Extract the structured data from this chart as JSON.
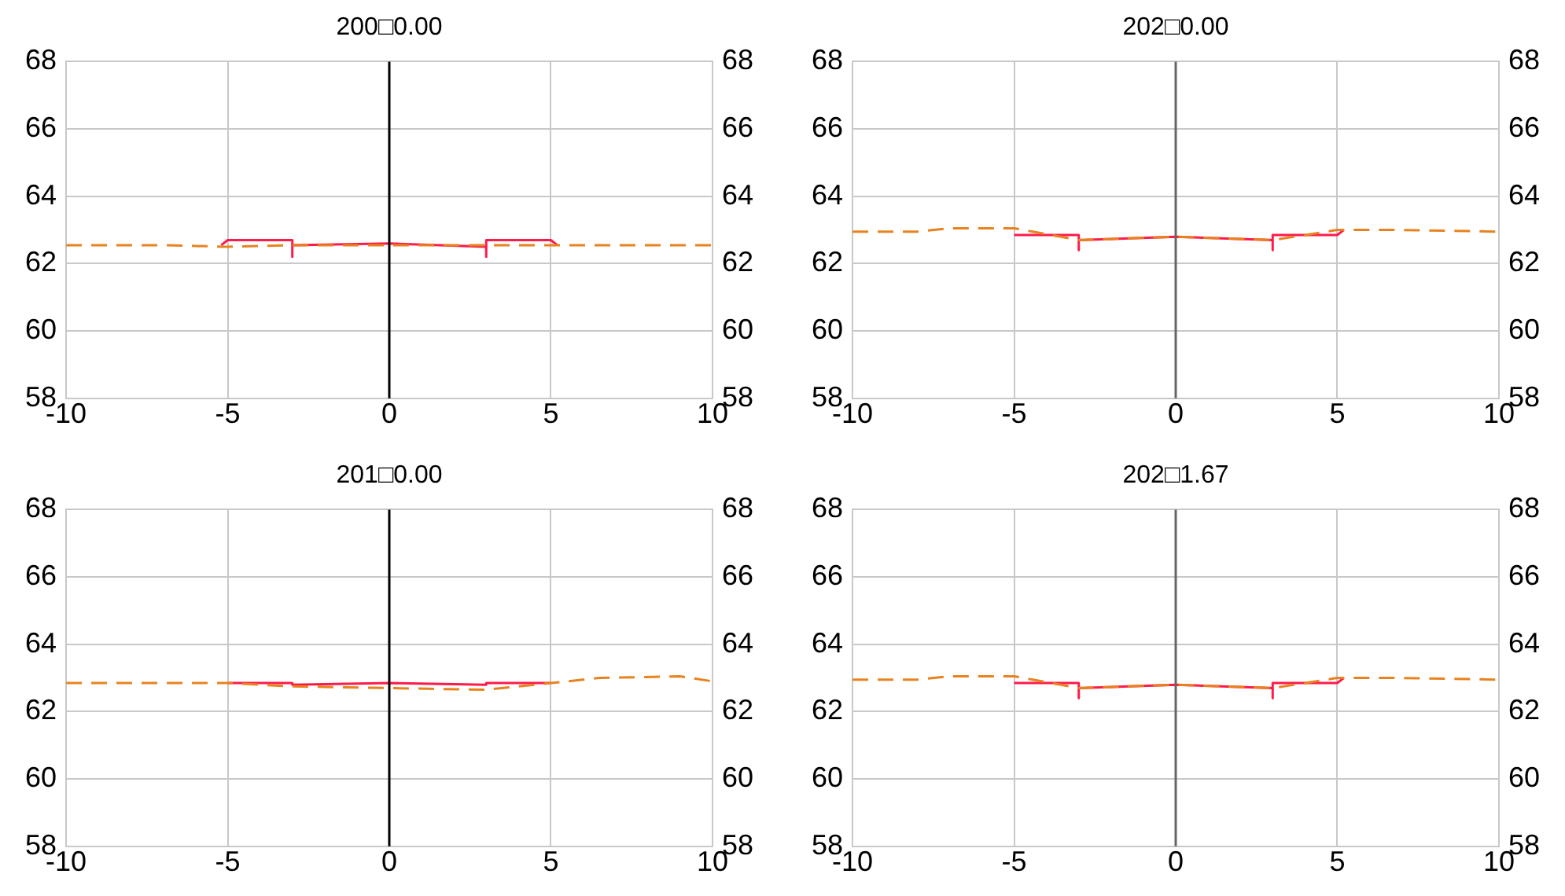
{
  "chart_data": [
    {
      "type": "line",
      "title": "200□0.00",
      "xlim": [
        -10,
        10
      ],
      "xticks": [
        -10,
        -5,
        0,
        5,
        10
      ],
      "ylim": [
        58,
        68
      ],
      "yticks": [
        58,
        60,
        62,
        64,
        66,
        68
      ],
      "y2lim": [
        58,
        68
      ],
      "y2ticks": [
        58,
        60,
        62,
        64,
        66,
        68
      ],
      "grid": true,
      "legend": false,
      "marker": "none",
      "series": [
        {
          "color": "#e8821e",
          "line_style": "dashed",
          "x": [
            -10,
            -7,
            -5,
            -3,
            0,
            3,
            5,
            7,
            10
          ],
          "values": [
            62.55,
            62.55,
            62.5,
            62.55,
            62.55,
            62.55,
            62.55,
            62.55,
            62.55
          ]
        },
        {
          "color": "#ff1a4a",
          "line_style": "solid",
          "x": [
            -5.2,
            -5,
            -3,
            -3,
            -3,
            0,
            3,
            3,
            3,
            5,
            5.2
          ],
          "values": [
            62.55,
            62.7,
            62.7,
            62.2,
            62.55,
            62.6,
            62.5,
            62.2,
            62.7,
            62.7,
            62.55
          ]
        }
      ],
      "ref_lines": [
        {
          "axis": "x",
          "value": 0,
          "color": "#000000"
        }
      ]
    },
    {
      "type": "line",
      "title": "202□0.00",
      "xlim": [
        -10,
        10
      ],
      "xticks": [
        -10,
        -5,
        0,
        5,
        10
      ],
      "ylim": [
        58,
        68
      ],
      "yticks": [
        58,
        60,
        62,
        64,
        66,
        68
      ],
      "y2lim": [
        58,
        68
      ],
      "y2ticks": [
        58,
        60,
        62,
        64,
        66,
        68
      ],
      "grid": true,
      "legend": false,
      "marker": "none",
      "series": [
        {
          "color": "#e8821e",
          "line_style": "dashed",
          "x": [
            -10,
            -8,
            -7,
            -5,
            -3,
            0,
            3,
            5,
            7,
            10
          ],
          "values": [
            62.95,
            62.95,
            63.05,
            63.05,
            62.7,
            62.8,
            62.7,
            63.0,
            63.0,
            62.95
          ]
        },
        {
          "color": "#ff1a4a",
          "line_style": "solid",
          "x": [
            -5,
            -3,
            -3,
            -3,
            0,
            3,
            3,
            3,
            5,
            5.2
          ],
          "values": [
            62.85,
            62.85,
            62.4,
            62.7,
            62.8,
            62.7,
            62.4,
            62.85,
            62.85,
            63.0
          ]
        }
      ],
      "ref_lines": [
        {
          "axis": "x",
          "value": 0,
          "color": "#666666"
        }
      ]
    },
    {
      "type": "line",
      "title": "201□0.00",
      "xlim": [
        -10,
        10
      ],
      "xticks": [
        -10,
        -5,
        0,
        5,
        10
      ],
      "ylim": [
        58,
        68
      ],
      "yticks": [
        58,
        60,
        62,
        64,
        66,
        68
      ],
      "y2lim": [
        58,
        68
      ],
      "y2ticks": [
        58,
        60,
        62,
        64,
        66,
        68
      ],
      "grid": true,
      "legend": false,
      "marker": "none",
      "series": [
        {
          "color": "#e8821e",
          "line_style": "dashed",
          "x": [
            -10,
            -5,
            -3,
            0,
            3,
            5,
            6.5,
            9,
            10
          ],
          "values": [
            62.85,
            62.85,
            62.75,
            62.7,
            62.65,
            62.85,
            63.0,
            63.05,
            62.9
          ]
        },
        {
          "color": "#ff1a4a",
          "line_style": "solid",
          "x": [
            -5,
            -3,
            -3,
            0,
            3,
            3,
            5
          ],
          "values": [
            62.85,
            62.85,
            62.8,
            62.85,
            62.8,
            62.85,
            62.85
          ]
        }
      ],
      "ref_lines": [
        {
          "axis": "x",
          "value": 0,
          "color": "#000000"
        }
      ]
    },
    {
      "type": "line",
      "title": "202□1.67",
      "xlim": [
        -10,
        10
      ],
      "xticks": [
        -10,
        -5,
        0,
        5,
        10
      ],
      "ylim": [
        58,
        68
      ],
      "yticks": [
        58,
        60,
        62,
        64,
        66,
        68
      ],
      "y2lim": [
        58,
        68
      ],
      "y2ticks": [
        58,
        60,
        62,
        64,
        66,
        68
      ],
      "grid": true,
      "legend": false,
      "marker": "none",
      "series": [
        {
          "color": "#e8821e",
          "line_style": "dashed",
          "x": [
            -10,
            -8,
            -7,
            -5,
            -3,
            0,
            3,
            5,
            7,
            10
          ],
          "values": [
            62.95,
            62.95,
            63.05,
            63.05,
            62.7,
            62.8,
            62.7,
            63.0,
            63.0,
            62.95
          ]
        },
        {
          "color": "#ff1a4a",
          "line_style": "solid",
          "x": [
            -5,
            -3,
            -3,
            -3,
            0,
            3,
            3,
            3,
            5,
            5.2
          ],
          "values": [
            62.85,
            62.85,
            62.4,
            62.7,
            62.8,
            62.7,
            62.4,
            62.85,
            62.85,
            63.0
          ]
        }
      ],
      "ref_lines": [
        {
          "axis": "x",
          "value": 0,
          "color": "#666666"
        }
      ]
    }
  ]
}
